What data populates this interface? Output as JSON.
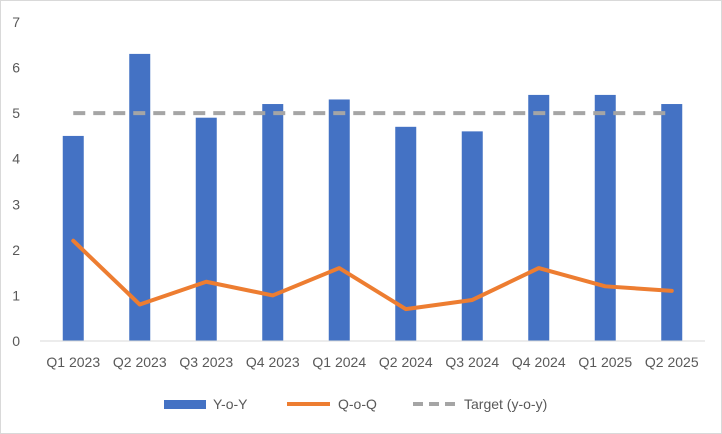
{
  "chart_data": {
    "type": "bar",
    "categories": [
      "Q1 2023",
      "Q2 2023",
      "Q3 2023",
      "Q4 2023",
      "Q1 2024",
      "Q2 2024",
      "Q3 2024",
      "Q4 2024",
      "Q1 2025",
      "Q2 2025"
    ],
    "series": [
      {
        "name": "Y-o-Y",
        "kind": "bar",
        "color": "#4472C4",
        "values": [
          4.5,
          6.3,
          4.9,
          5.2,
          5.3,
          4.7,
          4.6,
          5.4,
          5.4,
          5.2
        ]
      },
      {
        "name": "Q-o-Q",
        "kind": "line",
        "color": "#ED7D31",
        "values": [
          2.2,
          0.8,
          1.3,
          1.0,
          1.6,
          0.7,
          0.9,
          1.6,
          1.2,
          1.1
        ]
      },
      {
        "name": "Target (y-o-y)",
        "kind": "dashed-line",
        "color": "#A5A5A5",
        "values": [
          5,
          5,
          5,
          5,
          5,
          5,
          5,
          5,
          5,
          5
        ]
      }
    ],
    "ylim": [
      0,
      7
    ],
    "yticks": [
      "0",
      "1",
      "2",
      "3",
      "4",
      "5",
      "6",
      "7"
    ],
    "title": "",
    "xlabel": "",
    "ylabel": "",
    "grid": false,
    "legend_position": "bottom"
  }
}
